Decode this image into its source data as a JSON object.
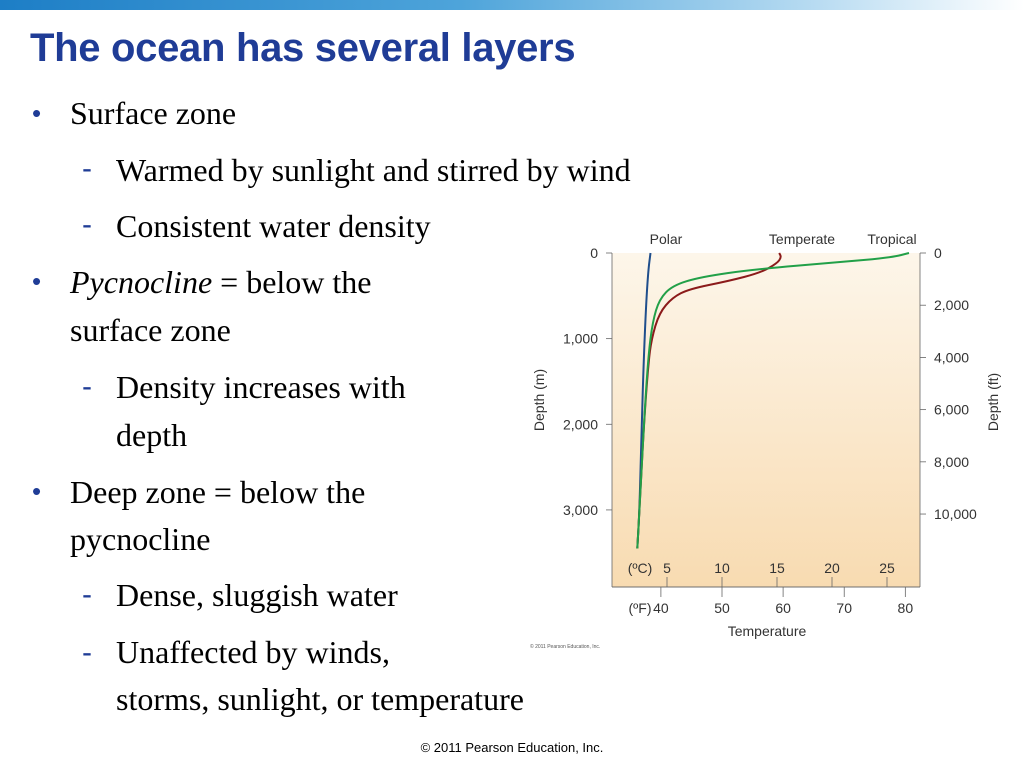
{
  "title": "The ocean has several layers",
  "bullets": [
    {
      "level": 1,
      "lines": [
        "Surface zone"
      ]
    },
    {
      "level": 2,
      "lines": [
        "Warmed by sunlight and stirred by wind"
      ]
    },
    {
      "level": 2,
      "lines": [
        "Consistent water density"
      ]
    },
    {
      "level": 1,
      "italic_prefix": "Pycnocline",
      "lines": [
        " = below the",
        "surface zone"
      ]
    },
    {
      "level": 2,
      "lines": [
        "Density increases with",
        "depth"
      ]
    },
    {
      "level": 1,
      "lines": [
        "Deep zone = below the",
        "pycnocline"
      ]
    },
    {
      "level": 2,
      "lines": [
        "Dense, sluggish water"
      ]
    },
    {
      "level": 2,
      "lines": [
        "Unaffected by winds,",
        "storms, sunlight, or temperature"
      ]
    }
  ],
  "bullet_symbol": "•",
  "dash_symbol": "-",
  "chart_data": {
    "type": "line",
    "series": [
      {
        "name": "Polar",
        "color": "#1f4e8c",
        "points": [
          [
            3.5,
            0
          ],
          [
            3.3,
            200
          ],
          [
            3.1,
            600
          ],
          [
            2.9,
            1200
          ],
          [
            2.7,
            2000
          ],
          [
            2.5,
            3000
          ],
          [
            2.3,
            3450
          ]
        ]
      },
      {
        "name": "Temperate",
        "color": "#8b1a1a",
        "points": [
          [
            15.2,
            0
          ],
          [
            15.4,
            50
          ],
          [
            15.0,
            120
          ],
          [
            13.5,
            230
          ],
          [
            10.5,
            330
          ],
          [
            7.0,
            420
          ],
          [
            5.5,
            520
          ],
          [
            4.3,
            700
          ],
          [
            3.6,
            1000
          ],
          [
            3.3,
            1300
          ],
          [
            2.9,
            2000
          ],
          [
            2.5,
            3000
          ],
          [
            2.3,
            3450
          ]
        ]
      },
      {
        "name": "Tropical",
        "color": "#22a048",
        "points": [
          [
            27.0,
            0
          ],
          [
            25.5,
            50
          ],
          [
            20.5,
            110
          ],
          [
            13.0,
            190
          ],
          [
            8.0,
            280
          ],
          [
            5.5,
            380
          ],
          [
            4.3,
            540
          ],
          [
            3.7,
            800
          ],
          [
            3.3,
            1200
          ],
          [
            2.9,
            2000
          ],
          [
            2.5,
            3000
          ],
          [
            2.3,
            3450
          ]
        ]
      }
    ],
    "xlabel": "Temperature",
    "xaxis_c": {
      "unit": "(ºC)",
      "ticks": [
        5,
        10,
        15,
        20,
        25
      ]
    },
    "xaxis_f": {
      "unit": "(ºF)",
      "ticks": [
        40,
        50,
        60,
        70,
        80
      ]
    },
    "ylabel_left": "Depth (m)",
    "ylabel_right": "Depth (ft)",
    "yticks_m": [
      "0",
      "1,000",
      "2,000",
      "3,000"
    ],
    "yticks_ft": [
      "0",
      "2,000",
      "4,000",
      "6,000",
      "8,000",
      "10,000"
    ],
    "ylim_m": [
      0,
      3900
    ],
    "xlim_c": [
      0,
      28
    ],
    "background": [
      "#fdf6ea",
      "#f8dbb1"
    ],
    "credit": "© 2011 Pearson Education, Inc."
  },
  "footer": "© 2011 Pearson Education, Inc."
}
